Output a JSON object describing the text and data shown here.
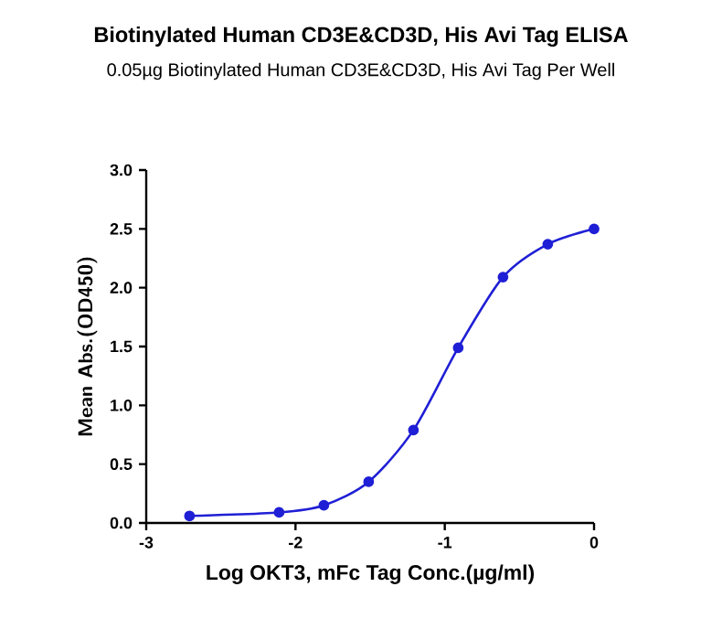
{
  "chart_data": {
    "type": "line",
    "title": "Biotinylated Human CD3E&CD3D, His Avi Tag ELISA",
    "subtitle": "0.05µg Biotinylated Human CD3E&CD3D, His Avi Tag Per Well",
    "xlabel": "Log OKT3, mFc Tag Conc.(µg/ml)",
    "ylabel": "Mean Abs.(OD450)",
    "x": [
      -2.71,
      -2.11,
      -1.81,
      -1.51,
      -1.21,
      -0.91,
      -0.61,
      -0.31,
      0
    ],
    "series": [
      {
        "color": "#1f1fd6",
        "values": [
          0.06,
          0.09,
          0.15,
          0.35,
          0.79,
          1.49,
          2.09,
          2.37,
          2.5
        ]
      }
    ],
    "xlim": [
      -3,
      0
    ],
    "ylim": [
      0,
      3
    ],
    "xticks": [
      -3,
      -2,
      -1,
      0
    ],
    "yticks": [
      {
        "value": 0,
        "label": "0.0"
      },
      {
        "value": 0.5,
        "label": "0.5"
      },
      {
        "value": 1,
        "label": "1.0"
      },
      {
        "value": 1.5,
        "label": "1.5"
      },
      {
        "value": 2,
        "label": "2.0"
      },
      {
        "value": 2.5,
        "label": "2.5"
      },
      {
        "value": 3,
        "label": "3.0"
      }
    ],
    "grid": false,
    "marker": "circle",
    "line_style": "solid"
  }
}
